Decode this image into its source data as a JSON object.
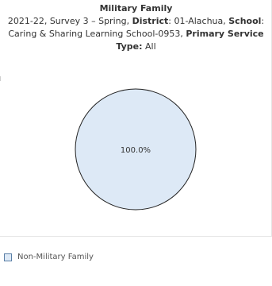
{
  "chart_data": {
    "type": "pie",
    "title": "Military Family",
    "subtitle": {
      "year": "2021-22",
      "survey": "Survey 3 – Spring",
      "district_label": "District",
      "district_value": "01-Alachua",
      "school_label": "School",
      "school_value": "Caring & Sharing Learning School-0953",
      "service_label": "Primary Service Type:",
      "service_value": "All"
    },
    "slices": [
      {
        "name": "Non-Military Family",
        "value": 100.0,
        "label": "100.0%"
      }
    ],
    "legend_position": "bottom-left"
  },
  "colors": {
    "slice_fill": "#dde9f6",
    "slice_stroke": "#222222",
    "legend_border": "#5b7fa6"
  }
}
